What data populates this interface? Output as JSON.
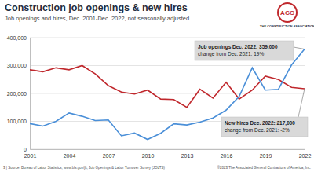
{
  "chart_data": {
    "type": "line",
    "title": "Construction job openings & new hires",
    "subtitle": "Job openings and hires, Dec. 2001-Dec. 2022, not seasonally adjusted",
    "logo_text": "AGC",
    "logo_tagline": "THE CONSTRUCTION ASSOCIATION",
    "source": "3 | Source: Bureau of Labor Statistics, www.bls.gov/jlt, Job Openings & Labor Turnover Survey (JOLTS)",
    "copyright": "©2023 The Associated General Contractors of America, Inc.",
    "x": [
      2001,
      2002,
      2003,
      2004,
      2005,
      2006,
      2007,
      2008,
      2009,
      2010,
      2011,
      2012,
      2013,
      2014,
      2015,
      2016,
      2017,
      2018,
      2019,
      2020,
      2021,
      2022
    ],
    "series": [
      {
        "color": "#c0282d",
        "values": [
          285000,
          278000,
          292000,
          285000,
          300000,
          270000,
          228000,
          205000,
          198000,
          212000,
          180000,
          178000,
          150000,
          215000,
          183000,
          240000,
          180000,
          212000,
          262000,
          250000,
          222000,
          217000
        ]
      },
      {
        "color": "#4a8fd8",
        "values": [
          92000,
          83000,
          100000,
          130000,
          118000,
          103000,
          105000,
          48000,
          58000,
          35000,
          57000,
          91000,
          87000,
          97000,
          112000,
          140000,
          189000,
          292000,
          212000,
          215000,
          302000,
          359000
        ]
      }
    ],
    "xlim": [
      2001,
      2022
    ],
    "xticks": [
      2001,
      2004,
      2007,
      2010,
      2013,
      2016,
      2019,
      2022
    ],
    "ylim": [
      0,
      400000
    ],
    "yticks": [
      0,
      {
        "value": 100000,
        "label": "100,000"
      },
      {
        "value": 200000,
        "label": "200,000"
      },
      {
        "value": 300000,
        "label": "300,000"
      },
      {
        "value": 400000,
        "label": "400,000"
      }
    ],
    "grid": true,
    "annotations": [
      {
        "lines": [
          "Job openings Dec. 2022: 359,000",
          "change from Dec. 2021: 19%"
        ]
      },
      {
        "lines": [
          "New hires Dec. 2022: 217,000",
          "change from Dec. 2021: -2%"
        ]
      }
    ]
  }
}
